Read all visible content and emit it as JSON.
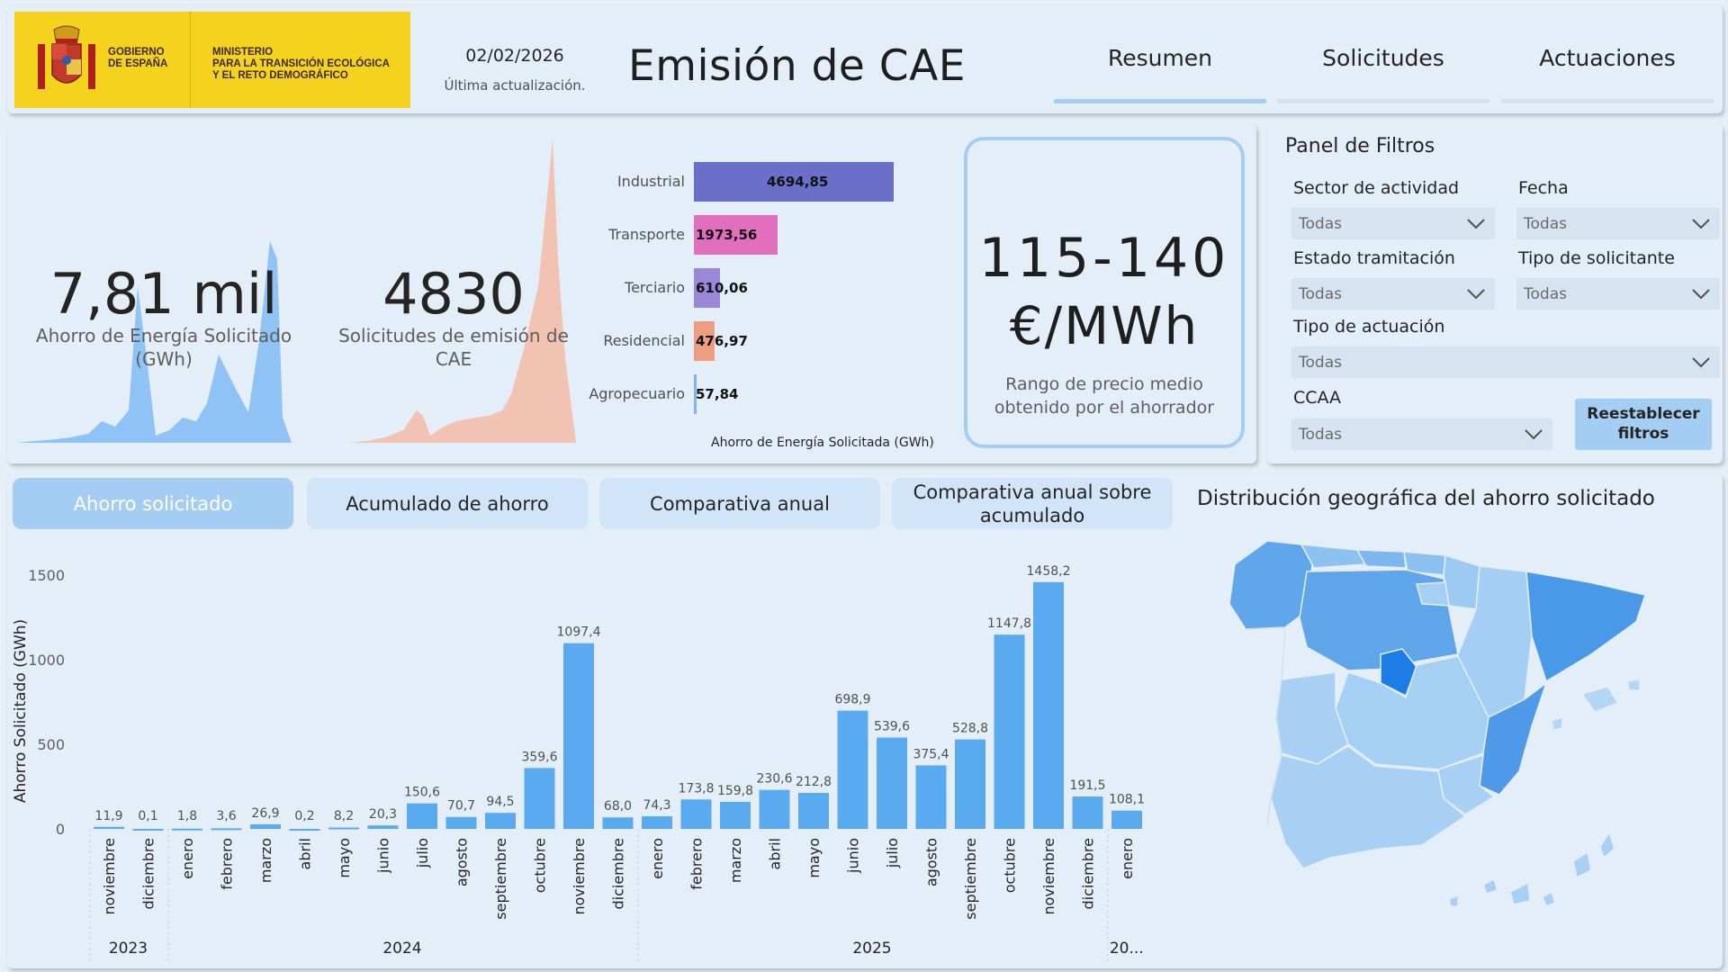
{
  "header": {
    "logo": {
      "gov": "GOBIERNO\nDE ESPAÑA",
      "ministry": "MINISTERIO\nPARA LA TRANSICIÓN ECOLÓGICA\nY EL RETO DEMOGRÁFICO",
      "color": "#f5d21d"
    },
    "update_date": "02/02/2026",
    "update_label": "Última actualización.",
    "title": "Emisión de CAE",
    "tabs": [
      {
        "label": "Resumen",
        "active": true
      },
      {
        "label": "Solicitudes",
        "active": false
      },
      {
        "label": "Actuaciones",
        "active": false
      }
    ]
  },
  "kpis": {
    "energy_saving": {
      "value": "7,81 mil",
      "label": "Ahorro de Energía Solicitado (GWh)"
    },
    "requests": {
      "value": "4830",
      "label": "Solicitudes de emisión de CAE"
    }
  },
  "sectors": {
    "axis_label": "Ahorro de Energía Solicitada (GWh)",
    "items": [
      {
        "name": "Industrial",
        "value": 4694.85,
        "label": "4694,85",
        "color": "#6a6fc9"
      },
      {
        "name": "Transporte",
        "value": 1973.56,
        "label": "1973,56",
        "color": "#e16fbd"
      },
      {
        "name": "Terciario",
        "value": 610.06,
        "label": "610,06",
        "color": "#9a87d8"
      },
      {
        "name": "Residencial",
        "value": 476.97,
        "label": "476,97",
        "color": "#ee9d80"
      },
      {
        "name": "Agropecuario",
        "value": 57.84,
        "label": "57,84",
        "color": "#82b4e8"
      }
    ]
  },
  "price": {
    "range": "115-140",
    "unit": "€/MWh",
    "label": "Rango de precio medio obtenido por el ahorrador"
  },
  "filters": {
    "title": "Panel de Filtros",
    "items": [
      {
        "label": "Sector de actividad",
        "value": "Todas"
      },
      {
        "label": "Fecha",
        "value": "Todas"
      },
      {
        "label": "Estado tramitación",
        "value": "Todas"
      },
      {
        "label": "Tipo de solicitante",
        "value": "Todas"
      },
      {
        "label": "Tipo de actuación",
        "value": "Todas"
      },
      {
        "label": "CCAA",
        "value": "Todas"
      }
    ],
    "reset_label": "Reestablecer filtros"
  },
  "view_buttons": [
    {
      "label": "Ahorro solicitado",
      "active": true
    },
    {
      "label": "Acumulado de ahorro",
      "active": false
    },
    {
      "label": "Comparativa anual",
      "active": false
    },
    {
      "label": "Comparativa anual sobre acumulado",
      "active": false
    }
  ],
  "map": {
    "title": "Distribución geográfica del ahorro solicitado"
  },
  "chart_data": {
    "type": "bar",
    "ylabel": "Ahorro Solicitado (GWh)",
    "ylim": [
      0,
      1500
    ],
    "yticks": [
      0,
      500,
      1000,
      1500
    ],
    "color": "#5aaaf0",
    "categories": [
      "noviembre",
      "diciembre",
      "enero",
      "febrero",
      "marzo",
      "abril",
      "mayo",
      "junio",
      "julio",
      "agosto",
      "septiembre",
      "octubre",
      "noviembre",
      "diciembre",
      "enero",
      "febrero",
      "marzo",
      "abril",
      "mayo",
      "junio",
      "julio",
      "agosto",
      "septiembre",
      "octubre",
      "noviembre",
      "diciembre",
      "enero"
    ],
    "values": [
      11.9,
      0.1,
      1.8,
      3.6,
      26.9,
      0.2,
      8.2,
      20.3,
      150.6,
      70.7,
      94.5,
      359.6,
      1097.4,
      68.0,
      74.3,
      173.8,
      159.8,
      230.6,
      212.8,
      698.9,
      539.6,
      375.4,
      528.8,
      1147.8,
      1458.2,
      191.5,
      108.1
    ],
    "labels": [
      "11,9",
      "0,1",
      "1,8",
      "3,6",
      "26,9",
      "0,2",
      "8,2",
      "20,3",
      "150,6",
      "70,7",
      "94,5",
      "359,6",
      "1097,4",
      "68,0",
      "74,3",
      "173,8",
      "159,8",
      "230,6",
      "212,8",
      "698,9",
      "539,6",
      "375,4",
      "528,8",
      "1147,8",
      "1458,2",
      "191,5",
      "108,1"
    ],
    "years": [
      {
        "label": "2023",
        "start": 0,
        "end": 1
      },
      {
        "label": "2024",
        "start": 2,
        "end": 13
      },
      {
        "label": "2025",
        "start": 14,
        "end": 25
      },
      {
        "label": "20...",
        "start": 26,
        "end": 26
      }
    ]
  }
}
